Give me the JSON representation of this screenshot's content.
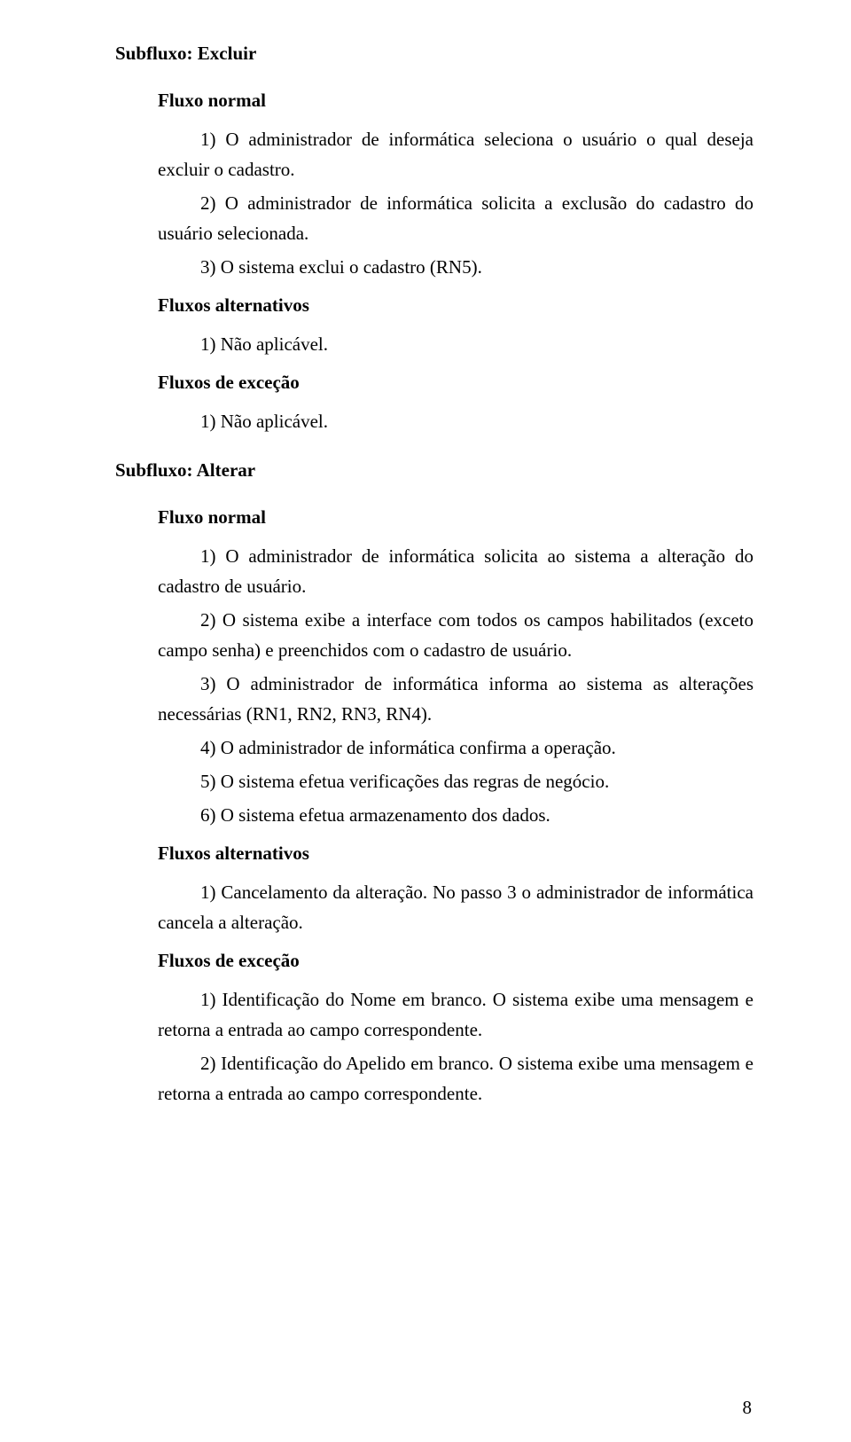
{
  "sec1": {
    "heading": "Subfluxo: Excluir",
    "fluxo_normal_label": "Fluxo normal",
    "p1": "1) O administrador de informática seleciona o usuário o qual deseja excluir o cadastro.",
    "p2": "2) O administrador de informática solicita a exclusão do cadastro do usuário selecionada.",
    "p3": "3) O sistema exclui o cadastro (RN5).",
    "fluxos_alt_label": "Fluxos alternativos",
    "alt1": "1) Não aplicável.",
    "fluxos_exc_label": "Fluxos de exceção",
    "exc1": "1) Não aplicável."
  },
  "sec2": {
    "heading": "Subfluxo: Alterar",
    "fluxo_normal_label": "Fluxo normal",
    "p1": "1) O administrador de informática solicita ao sistema a alteração do cadastro de usuário.",
    "p2": "2) O sistema exibe a interface com todos os campos habilitados (exceto campo senha) e preenchidos com o cadastro de usuário.",
    "p3": "3) O administrador de informática informa ao sistema as alterações necessárias (RN1, RN2, RN3, RN4).",
    "p4": "4) O administrador de informática confirma a operação.",
    "p5": "5) O sistema efetua verificações das regras de negócio.",
    "p6": "6) O sistema efetua armazenamento dos dados.",
    "fluxos_alt_label": "Fluxos alternativos",
    "alt1": "1) Cancelamento da alteração. No passo 3 o administrador de informática cancela a alteração.",
    "fluxos_exc_label": "Fluxos de exceção",
    "exc1": "1) Identificação do Nome em branco. O sistema exibe uma mensagem e retorna a entrada ao campo correspondente.",
    "exc2": "2) Identificação do Apelido em branco. O sistema exibe uma mensagem e retorna a entrada ao campo correspondente."
  },
  "page_number": "8"
}
